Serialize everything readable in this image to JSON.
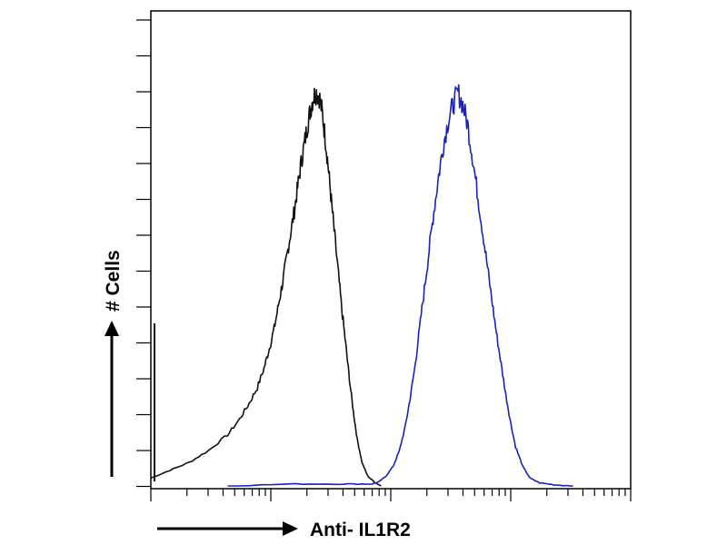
{
  "chart_data": {
    "type": "line",
    "title": "",
    "xlabel": "Anti- IL1R2",
    "ylabel": "# Cells",
    "x_scale": "log",
    "x_tick_labels": [],
    "y_tick_labels": [],
    "grid": false,
    "legend": "none",
    "series": [
      {
        "color": "#111111",
        "values": [
          [
            0.0,
            0.02
          ],
          [
            0.04,
            0.04
          ],
          [
            0.08,
            0.06
          ],
          [
            0.12,
            0.09
          ],
          [
            0.16,
            0.13
          ],
          [
            0.185,
            0.17
          ],
          [
            0.205,
            0.21
          ],
          [
            0.222,
            0.25
          ],
          [
            0.236,
            0.3
          ],
          [
            0.247,
            0.35
          ],
          [
            0.257,
            0.4
          ],
          [
            0.266,
            0.46
          ],
          [
            0.275,
            0.52
          ],
          [
            0.283,
            0.58
          ],
          [
            0.291,
            0.64
          ],
          [
            0.299,
            0.7
          ],
          [
            0.306,
            0.76
          ],
          [
            0.313,
            0.82
          ],
          [
            0.32,
            0.87
          ],
          [
            0.327,
            0.92
          ],
          [
            0.333,
            0.96
          ],
          [
            0.339,
            0.99
          ],
          [
            0.345,
            1.0
          ],
          [
            0.351,
            0.99
          ],
          [
            0.357,
            0.95
          ],
          [
            0.363,
            0.89
          ],
          [
            0.369,
            0.82
          ],
          [
            0.375,
            0.74
          ],
          [
            0.382,
            0.65
          ],
          [
            0.39,
            0.55
          ],
          [
            0.398,
            0.45
          ],
          [
            0.406,
            0.36
          ],
          [
            0.414,
            0.27
          ],
          [
            0.422,
            0.19
          ],
          [
            0.43,
            0.12
          ],
          [
            0.44,
            0.06
          ],
          [
            0.452,
            0.025
          ],
          [
            0.466,
            0.01
          ],
          [
            0.48,
            0.0
          ]
        ]
      },
      {
        "color": "#1a23b3",
        "values": [
          [
            0.16,
            0.0
          ],
          [
            0.3,
            0.005
          ],
          [
            0.4,
            0.005
          ],
          [
            0.46,
            0.005
          ],
          [
            0.475,
            0.01
          ],
          [
            0.49,
            0.025
          ],
          [
            0.505,
            0.05
          ],
          [
            0.518,
            0.09
          ],
          [
            0.53,
            0.15
          ],
          [
            0.54,
            0.22
          ],
          [
            0.55,
            0.3
          ],
          [
            0.56,
            0.4
          ],
          [
            0.57,
            0.5
          ],
          [
            0.58,
            0.6
          ],
          [
            0.59,
            0.7
          ],
          [
            0.6,
            0.79
          ],
          [
            0.61,
            0.87
          ],
          [
            0.62,
            0.93
          ],
          [
            0.63,
            0.97
          ],
          [
            0.64,
            1.0
          ],
          [
            0.65,
            0.97
          ],
          [
            0.66,
            0.92
          ],
          [
            0.67,
            0.84
          ],
          [
            0.68,
            0.75
          ],
          [
            0.69,
            0.66
          ],
          [
            0.7,
            0.57
          ],
          [
            0.71,
            0.48
          ],
          [
            0.72,
            0.39
          ],
          [
            0.73,
            0.31
          ],
          [
            0.74,
            0.23
          ],
          [
            0.75,
            0.16
          ],
          [
            0.76,
            0.1
          ],
          [
            0.775,
            0.05
          ],
          [
            0.79,
            0.02
          ],
          [
            0.81,
            0.008
          ],
          [
            0.84,
            0.003
          ],
          [
            0.88,
            0.0
          ]
        ]
      }
    ]
  }
}
